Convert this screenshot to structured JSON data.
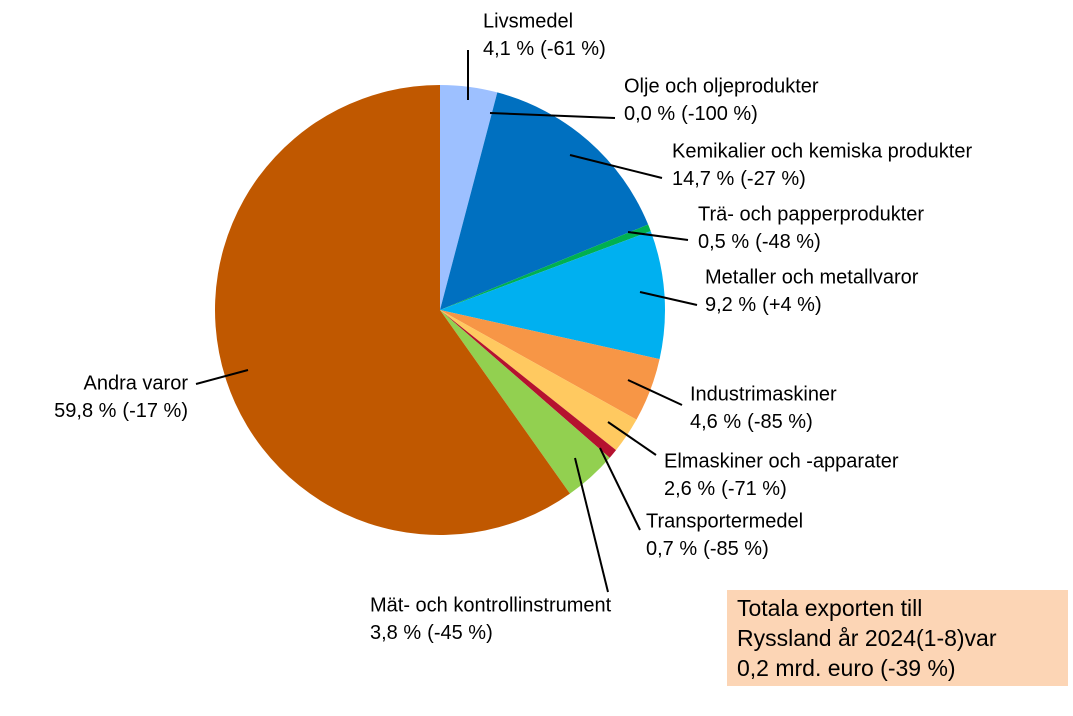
{
  "chart_data": {
    "type": "pie",
    "categories": [
      "Livsmedel",
      "Olje och oljeprodukter",
      "Kemikalier och kemiska produkter",
      "Trä- och papperprodukter",
      "Metaller och metallvaror",
      "Industrimaskiner",
      "Elmaskiner och -apparater",
      "Transportermedel",
      "Mät- och kontrollinstrument",
      "Andra varor"
    ],
    "values": [
      4.1,
      0.0,
      14.7,
      0.5,
      9.2,
      4.6,
      2.6,
      0.7,
      3.8,
      59.8
    ],
    "value_labels": [
      "4,1 %",
      "0,0 %",
      "14,7 %",
      "0,5 %",
      "9,2 %",
      "4,6 %",
      "2,6 %",
      "0,7 %",
      "3,8 %",
      "59,8 %"
    ],
    "changes": [
      -61,
      -100,
      -27,
      -48,
      4,
      -85,
      -71,
      -85,
      -45,
      -17
    ],
    "change_labels": [
      "(-61 %)",
      "(-100 %)",
      "(-27 %)",
      "(-48 %)",
      "(+4 %)",
      "(-85 %)",
      "(-71 %)",
      "(-85 %)",
      "(-45 %)",
      "(-17 %)"
    ],
    "colors": [
      "#9dc0ff",
      "#1f4e99",
      "#0070c0",
      "#00b050",
      "#00b0f0",
      "#f79646",
      "#ffc960",
      "#b5122f",
      "#92d050",
      "#c05800"
    ],
    "annotation": [
      "Totala exporten till",
      "Ryssland år 2024(1-8)var",
      "0,2 mrd. euro (-39 %)"
    ]
  }
}
